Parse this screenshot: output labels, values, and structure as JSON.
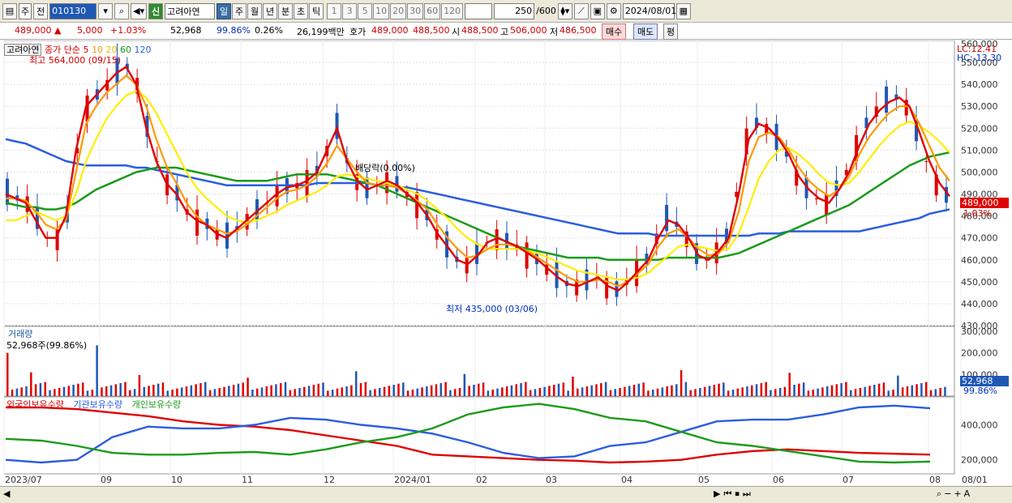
{
  "toolbar": {
    "market": "주",
    "market2": "전",
    "code": "010130",
    "name": "고려아연",
    "sin": "신",
    "periods": [
      "일",
      "주",
      "월",
      "년",
      "분",
      "초",
      "틱"
    ],
    "nums": [
      "1",
      "3",
      "5",
      "10",
      "20",
      "30",
      "60",
      "120"
    ],
    "count": "250",
    "count_max": "/600",
    "date": "2024/08/01"
  },
  "quote": {
    "price": "489,000",
    "up_arrow": "▲",
    "change": "5,000",
    "pct": "+1.03%",
    "volume": "52,968",
    "vol_ratio": "99.86%",
    "turnover": "0.26%",
    "amount": "26,199백만",
    "hoga_label": "호가",
    "hoga_buy": "489,000",
    "hoga_sell": "488,500",
    "open_label": "시",
    "open": "488,500",
    "high_label": "고",
    "high": "506,000",
    "low_label": "저",
    "low": "486,500",
    "buy": "매수",
    "sell": "매도",
    "avg": "평"
  },
  "legend": {
    "name": "고려아연",
    "ma_label": "종가 단순",
    "ma5": "5",
    "ma10": "10",
    "ma20": "20",
    "ma60": "60",
    "ma120": "120",
    "lc": "LC:12.41",
    "hc": "HC:-13.30"
  },
  "annot": {
    "high": "최고 564,000 (09/15)",
    "low": "최저 435,000 (03/06)",
    "div": "배당락(0.00%)"
  },
  "price_badge": {
    "price": "489,000",
    "pct": "1.03%"
  },
  "vol": {
    "title": "거래량",
    "info": "52,968주(99.86%)",
    "badge": "52,968",
    "badge2": "99.86%"
  },
  "holdings": {
    "foreign": "외국인보유수량",
    "inst": "기관보유수량",
    "indiv": "개인보유수량"
  },
  "colors": {
    "ma5": "#e00000",
    "ma10": "#ff9900",
    "ma20": "#ffee00",
    "ma60": "#1a9b1a",
    "ma120": "#2b5de0"
  },
  "chart_data": {
    "type": "line",
    "y_axis": [
      "550,000",
      "540,000",
      "530,000",
      "520,000",
      "510,000",
      "500,000",
      "490,000",
      "480,000",
      "470,000",
      "460,000",
      "450,000",
      "440,000",
      "430,000"
    ],
    "y_axis_top": "560,000",
    "y_min": 430000,
    "y_max": 560000,
    "x_labels": [
      "2023/07",
      "09",
      "10",
      "11",
      "12",
      "2024/01",
      "02",
      "03",
      "04",
      "05",
      "06",
      "07",
      "08",
      "08/01"
    ],
    "vol_axis": [
      "300,000",
      "200,000",
      "100,000"
    ],
    "hold_axis": [
      "400,000",
      "200,000"
    ],
    "ma5": [
      490,
      488,
      486,
      478,
      470,
      470,
      480,
      510,
      530,
      535,
      540,
      545,
      548,
      540,
      520,
      505,
      495,
      490,
      482,
      478,
      476,
      472,
      470,
      474,
      478,
      482,
      486,
      490,
      493,
      494,
      496,
      500,
      510,
      520,
      505,
      496,
      492,
      494,
      496,
      494,
      490,
      486,
      480,
      472,
      466,
      460,
      458,
      462,
      468,
      470,
      468,
      466,
      463,
      460,
      456,
      452,
      449,
      448,
      450,
      452,
      448,
      446,
      450,
      455,
      460,
      470,
      478,
      476,
      470,
      462,
      460,
      464,
      470,
      490,
      515,
      522,
      520,
      515,
      508,
      498,
      492,
      488,
      486,
      492,
      500,
      512,
      522,
      528,
      532,
      534,
      530,
      518,
      505,
      495,
      489
    ],
    "ma10": [
      488,
      488,
      487,
      482,
      476,
      474,
      478,
      500,
      522,
      530,
      536,
      540,
      544,
      540,
      530,
      515,
      503,
      495,
      486,
      480,
      476,
      474,
      472,
      473,
      476,
      480,
      484,
      488,
      491,
      492,
      494,
      498,
      504,
      512,
      506,
      500,
      495,
      494,
      494,
      493,
      490,
      487,
      483,
      476,
      470,
      465,
      461,
      462,
      465,
      467,
      467,
      466,
      464,
      461,
      458,
      455,
      452,
      450,
      450,
      451,
      450,
      448,
      450,
      454,
      458,
      466,
      472,
      474,
      470,
      465,
      462,
      463,
      468,
      482,
      505,
      516,
      518,
      516,
      510,
      502,
      496,
      492,
      489,
      492,
      498,
      508,
      516,
      522,
      527,
      530,
      530,
      522,
      512,
      502,
      496
    ],
    "ma20": [
      478,
      478,
      480,
      482,
      480,
      478,
      480,
      490,
      505,
      515,
      524,
      530,
      535,
      537,
      534,
      527,
      518,
      509,
      500,
      493,
      488,
      484,
      480,
      478,
      477,
      478,
      480,
      482,
      485,
      487,
      489,
      491,
      494,
      498,
      499,
      498,
      497,
      496,
      495,
      494,
      492,
      490,
      487,
      483,
      479,
      474,
      470,
      467,
      465,
      465,
      465,
      465,
      464,
      463,
      461,
      459,
      457,
      455,
      454,
      453,
      452,
      451,
      451,
      452,
      454,
      458,
      462,
      466,
      467,
      466,
      465,
      464,
      465,
      472,
      484,
      497,
      505,
      510,
      511,
      508,
      504,
      499,
      495,
      494,
      495,
      500,
      506,
      512,
      517,
      521,
      523,
      521,
      518,
      514,
      509
    ],
    "ma60": [
      486,
      485,
      484,
      484,
      483,
      483,
      484,
      486,
      489,
      492,
      494,
      496,
      498,
      500,
      501,
      502,
      502,
      502,
      501,
      500,
      499,
      498,
      497,
      496,
      496,
      496,
      496,
      497,
      498,
      499,
      499,
      499,
      499,
      498,
      497,
      496,
      495,
      494,
      492,
      490,
      488,
      486,
      484,
      482,
      480,
      478,
      476,
      474,
      472,
      470,
      468,
      466,
      465,
      464,
      463,
      462,
      461,
      461,
      461,
      461,
      460,
      460,
      460,
      460,
      460,
      460,
      461,
      461,
      461,
      461,
      461,
      461,
      462,
      463,
      465,
      467,
      469,
      471,
      473,
      475,
      477,
      479,
      481,
      483,
      485,
      488,
      491,
      494,
      497,
      500,
      503,
      505,
      507,
      508,
      509
    ],
    "ma120": [
      515,
      514,
      513,
      511,
      509,
      507,
      505,
      504,
      503,
      503,
      503,
      503,
      503,
      502,
      502,
      501,
      500,
      499,
      498,
      497,
      496,
      495,
      494,
      494,
      494,
      494,
      494,
      494,
      494,
      494,
      494,
      495,
      495,
      495,
      495,
      495,
      495,
      494,
      494,
      493,
      493,
      492,
      491,
      490,
      489,
      488,
      487,
      486,
      485,
      484,
      483,
      482,
      481,
      480,
      479,
      478,
      477,
      476,
      475,
      474,
      473,
      472,
      472,
      472,
      472,
      471,
      471,
      471,
      471,
      471,
      471,
      471,
      471,
      471,
      471,
      472,
      472,
      472,
      473,
      473,
      473,
      473,
      473,
      473,
      473,
      473,
      474,
      475,
      476,
      477,
      478,
      479,
      481,
      482,
      483
    ]
  }
}
